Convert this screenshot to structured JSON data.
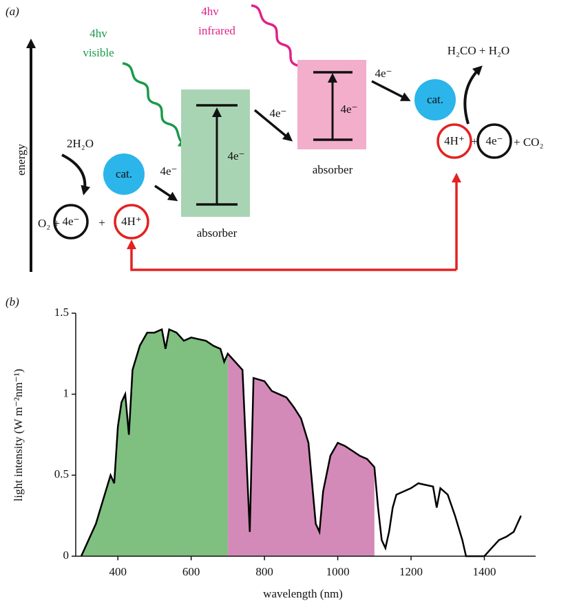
{
  "diagram": {
    "panel_label": "(a)",
    "axis_label": "energy",
    "photons": [
      {
        "quanta": "4hv",
        "band": "visible"
      },
      {
        "quanta": "4hv",
        "band": "infrared"
      }
    ],
    "absorbers": [
      {
        "label": "absorber",
        "transfer": "4e⁻"
      },
      {
        "label": "absorber",
        "transfer": "4e⁻"
      }
    ],
    "catalysts": [
      "cat.",
      "cat."
    ],
    "electron_steps": [
      "4e⁻",
      "4e⁻",
      "4e⁻"
    ],
    "water_oxidation": {
      "reactant": "2H₂O",
      "products": [
        "O₂ +",
        "4e⁻",
        "+",
        "4H⁺"
      ]
    },
    "co2_reduction": {
      "reactants": [
        "4H⁺",
        "+",
        "4e⁻",
        "+ CO₂"
      ],
      "product": "H₂CO + H₂O"
    }
  },
  "chart_data": {
    "type": "line",
    "panel_label": "(b)",
    "x_label": "wavelength (nm)",
    "y_label": "light intensity (W m⁻²nm⁻¹)",
    "color": "#000000",
    "x": [
      300,
      320,
      340,
      360,
      380,
      390,
      400,
      410,
      420,
      430,
      440,
      460,
      480,
      500,
      520,
      530,
      540,
      560,
      580,
      600,
      620,
      640,
      660,
      680,
      690,
      700,
      720,
      740,
      760,
      770,
      800,
      820,
      840,
      860,
      880,
      900,
      920,
      930,
      940,
      950,
      960,
      980,
      1000,
      1020,
      1040,
      1060,
      1080,
      1100,
      1110,
      1120,
      1130,
      1140,
      1150,
      1160,
      1180,
      1200,
      1220,
      1240,
      1260,
      1270,
      1280,
      1300,
      1320,
      1340,
      1350,
      1400,
      1420,
      1440,
      1460,
      1480,
      1500
    ],
    "values": [
      0,
      0.1,
      0.2,
      0.35,
      0.5,
      0.45,
      0.8,
      0.95,
      1.0,
      0.75,
      1.15,
      1.3,
      1.38,
      1.38,
      1.4,
      1.28,
      1.4,
      1.38,
      1.33,
      1.35,
      1.34,
      1.33,
      1.3,
      1.28,
      1.2,
      1.25,
      1.2,
      1.15,
      0.15,
      1.1,
      1.08,
      1.02,
      1.0,
      0.98,
      0.92,
      0.85,
      0.7,
      0.45,
      0.2,
      0.15,
      0.4,
      0.62,
      0.7,
      0.68,
      0.65,
      0.62,
      0.6,
      0.55,
      0.3,
      0.1,
      0.05,
      0.15,
      0.3,
      0.38,
      0.4,
      0.42,
      0.45,
      0.44,
      0.43,
      0.3,
      0.42,
      0.38,
      0.25,
      0.1,
      0,
      0,
      0.05,
      0.1,
      0.12,
      0.15,
      0.25
    ],
    "regions": [
      {
        "from": 300,
        "to": 700,
        "color": "#7fbf7f"
      },
      {
        "from": 700,
        "to": 1100,
        "color": "#d48ab8"
      }
    ],
    "xlim": [
      285,
      1540
    ],
    "ylim": [
      0,
      1.5
    ],
    "xticks": [
      400,
      600,
      800,
      1000,
      1200,
      1400
    ],
    "yticks": [
      0,
      0.5,
      1.0,
      1.5
    ]
  }
}
